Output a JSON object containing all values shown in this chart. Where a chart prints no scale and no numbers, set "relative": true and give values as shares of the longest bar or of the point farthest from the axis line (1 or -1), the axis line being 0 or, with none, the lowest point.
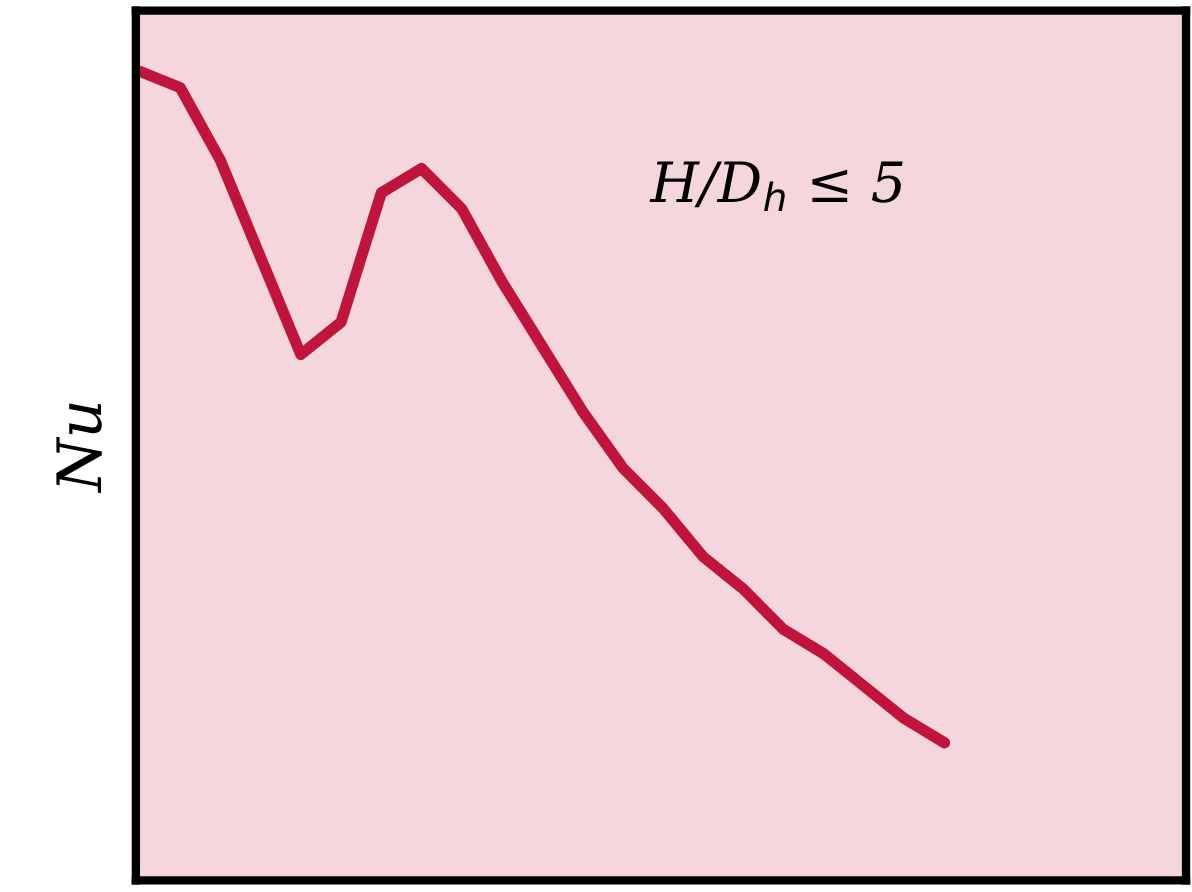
{
  "chart_data": {
    "type": "line",
    "relative": true,
    "ylabel": "Nu",
    "annotations": [
      "H/D$_{h}$ ≤ 5"
    ],
    "categories": [
      null,
      null,
      null,
      null,
      null,
      null,
      null,
      null,
      null,
      null,
      null,
      null,
      null,
      null,
      null,
      null,
      null,
      null,
      null,
      null,
      null
    ],
    "series": [
      {
        "color": "#c0143c",
        "values": [
          1.0,
          0.98,
          0.89,
          0.77,
          0.65,
          0.69,
          0.85,
          0.88,
          0.83,
          0.74,
          0.66,
          0.58,
          0.51,
          0.46,
          0.4,
          0.36,
          0.31,
          0.28,
          0.24,
          0.2,
          0.17
        ]
      }
    ],
    "grid": false,
    "legend": false,
    "marker": "none",
    "line_style": "solid"
  }
}
